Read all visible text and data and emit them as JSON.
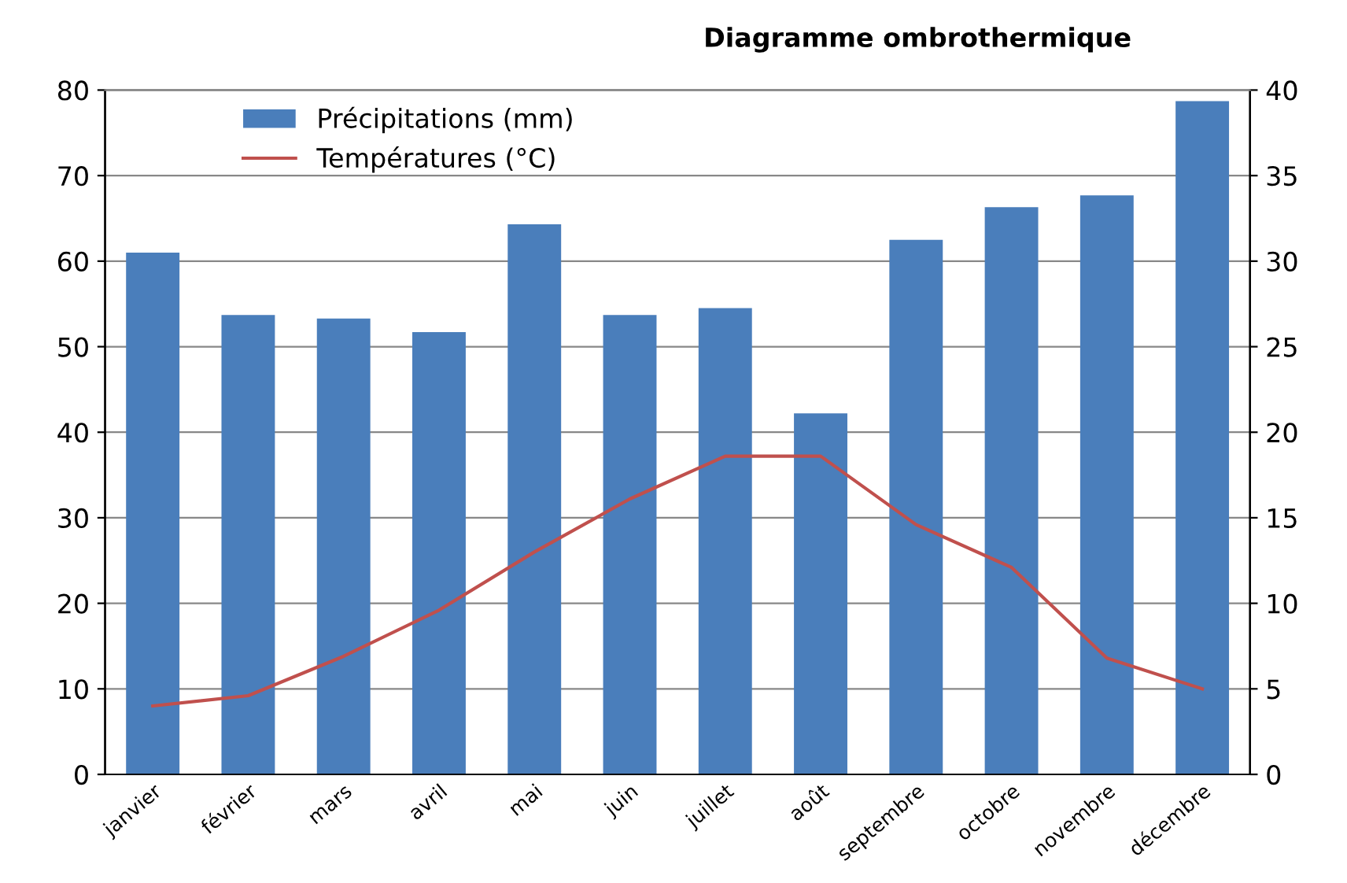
{
  "chart_data": {
    "type": "bar",
    "title": "Diagramme ombrothermique",
    "categories": [
      "janvier",
      "février",
      "mars",
      "avril",
      "mai",
      "juin",
      "juillet",
      "août",
      "septembre",
      "octobre",
      "novembre",
      "décembre"
    ],
    "series": [
      {
        "name": "Précipitations (mm)",
        "color": "#4a7ebb",
        "values": [
          61,
          53.7,
          53.3,
          51.7,
          64.3,
          53.7,
          54.5,
          42.2,
          62.5,
          66.3,
          67.7,
          78.7
        ]
      },
      {
        "name": "Températures (°C)",
        "type": "line",
        "axis": "y2",
        "color": "#c0504d",
        "values": [
          4.0,
          4.6,
          6.9,
          9.6,
          13.0,
          16.1,
          18.6,
          18.6,
          14.6,
          12.1,
          6.8,
          5.0
        ]
      }
    ],
    "ylim": [
      0,
      80
    ],
    "yticks": [
      0,
      10,
      20,
      30,
      40,
      50,
      60,
      70,
      80
    ],
    "y2lim": [
      0,
      40
    ],
    "y2ticks": [
      0,
      5,
      10,
      15,
      20,
      25,
      30,
      35,
      40
    ],
    "grid": "y",
    "legend": "top left",
    "marker": "none"
  }
}
